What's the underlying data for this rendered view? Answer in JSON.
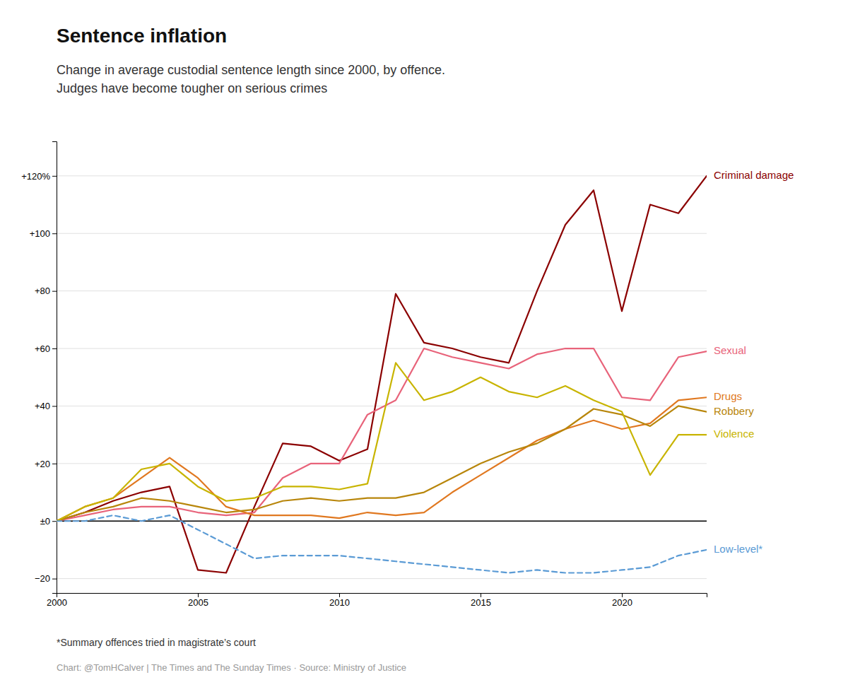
{
  "chart_data": {
    "type": "line",
    "title": "Sentence inflation",
    "subtitle": "Change in average custodial sentence length since 2000, by offence.\nJudges have become tougher on serious crimes",
    "footnote": "*Summary offences tried in magistrate’s court",
    "source": "Chart: @TomHCalver | The Times and The Sunday Times · Source: Ministry of Justice",
    "x": [
      2000,
      2001,
      2002,
      2003,
      2004,
      2005,
      2006,
      2007,
      2008,
      2009,
      2010,
      2011,
      2012,
      2013,
      2014,
      2015,
      2016,
      2017,
      2018,
      2019,
      2020,
      2021,
      2022,
      2023
    ],
    "series": [
      {
        "name": "Criminal damage",
        "color": "#8B0000",
        "line_style": "solid",
        "values": [
          0,
          3,
          7,
          10,
          12,
          -17,
          -18,
          5,
          27,
          26,
          21,
          25,
          79,
          62,
          60,
          57,
          55,
          80,
          103,
          115,
          73,
          110,
          107,
          120
        ]
      },
      {
        "name": "Sexual",
        "color": "#e8637a",
        "line_style": "solid",
        "values": [
          0,
          2,
          4,
          5,
          5,
          3,
          2,
          3,
          15,
          20,
          20,
          37,
          42,
          60,
          57,
          55,
          53,
          58,
          60,
          60,
          43,
          42,
          57,
          59
        ]
      },
      {
        "name": "Drugs",
        "color": "#e07820",
        "line_style": "solid",
        "values": [
          0,
          5,
          8,
          15,
          22,
          15,
          5,
          2,
          2,
          2,
          1,
          3,
          2,
          3,
          10,
          16,
          22,
          28,
          32,
          35,
          32,
          34,
          42,
          43
        ]
      },
      {
        "name": "Robbery",
        "color": "#b8860b",
        "line_style": "solid",
        "values": [
          0,
          3,
          5,
          8,
          7,
          5,
          3,
          4,
          7,
          8,
          7,
          8,
          8,
          10,
          15,
          20,
          24,
          27,
          32,
          39,
          37,
          33,
          40,
          38
        ]
      },
      {
        "name": "Violence",
        "color": "#c8b400",
        "line_style": "solid",
        "values": [
          0,
          5,
          8,
          18,
          20,
          12,
          7,
          8,
          12,
          12,
          11,
          13,
          55,
          42,
          45,
          50,
          45,
          43,
          47,
          42,
          38,
          16,
          30,
          30
        ]
      },
      {
        "name": "Low-level*",
        "color": "#5b9bd5",
        "line_style": "dashed",
        "values": [
          0,
          0,
          2,
          0,
          2,
          -3,
          -8,
          -13,
          -12,
          -12,
          -12,
          -13,
          -14,
          -15,
          -16,
          -17,
          -18,
          -17,
          -18,
          -18,
          -17,
          -16,
          -12,
          -10
        ]
      }
    ],
    "ylim": [
      -25,
      132
    ],
    "yticks": [
      {
        "value": -20,
        "label": "−20"
      },
      {
        "value": 0,
        "label": "±0"
      },
      {
        "value": 20,
        "label": "+20"
      },
      {
        "value": 40,
        "label": "+40"
      },
      {
        "value": 60,
        "label": "+60"
      },
      {
        "value": 80,
        "label": "+80"
      },
      {
        "value": 100,
        "label": "+100"
      },
      {
        "value": 120,
        "label": "+120%"
      }
    ],
    "xlim": [
      2000,
      2023
    ],
    "xticks": [
      2000,
      2005,
      2010,
      2015,
      2020
    ],
    "grid": true
  }
}
